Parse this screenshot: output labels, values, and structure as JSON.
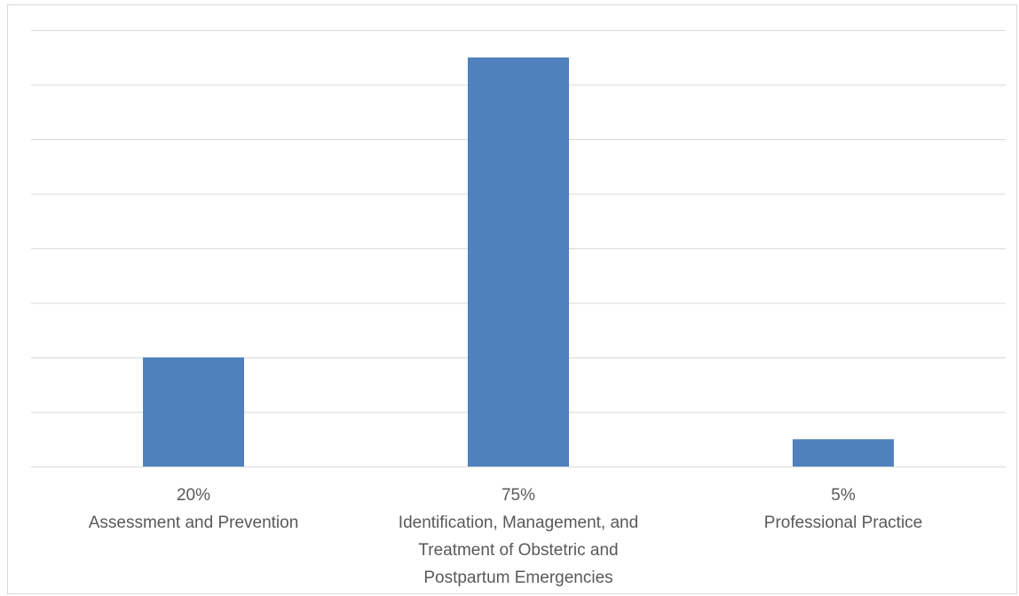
{
  "chart_data": {
    "type": "bar",
    "categories": [
      [
        "20%",
        "Assessment and Prevention"
      ],
      [
        "75%",
        "Identification, Management, and",
        "Treatment of Obstetric and",
        "Postpartum Emergencies"
      ],
      [
        "5%",
        "Professional Practice"
      ]
    ],
    "values": [
      20,
      75,
      5
    ],
    "ylim": [
      0,
      80
    ],
    "grid": true,
    "legend": "none",
    "colors": {
      "bar": "#4f81bd",
      "grid": "#d9d9d9",
      "text": "#595959"
    }
  }
}
